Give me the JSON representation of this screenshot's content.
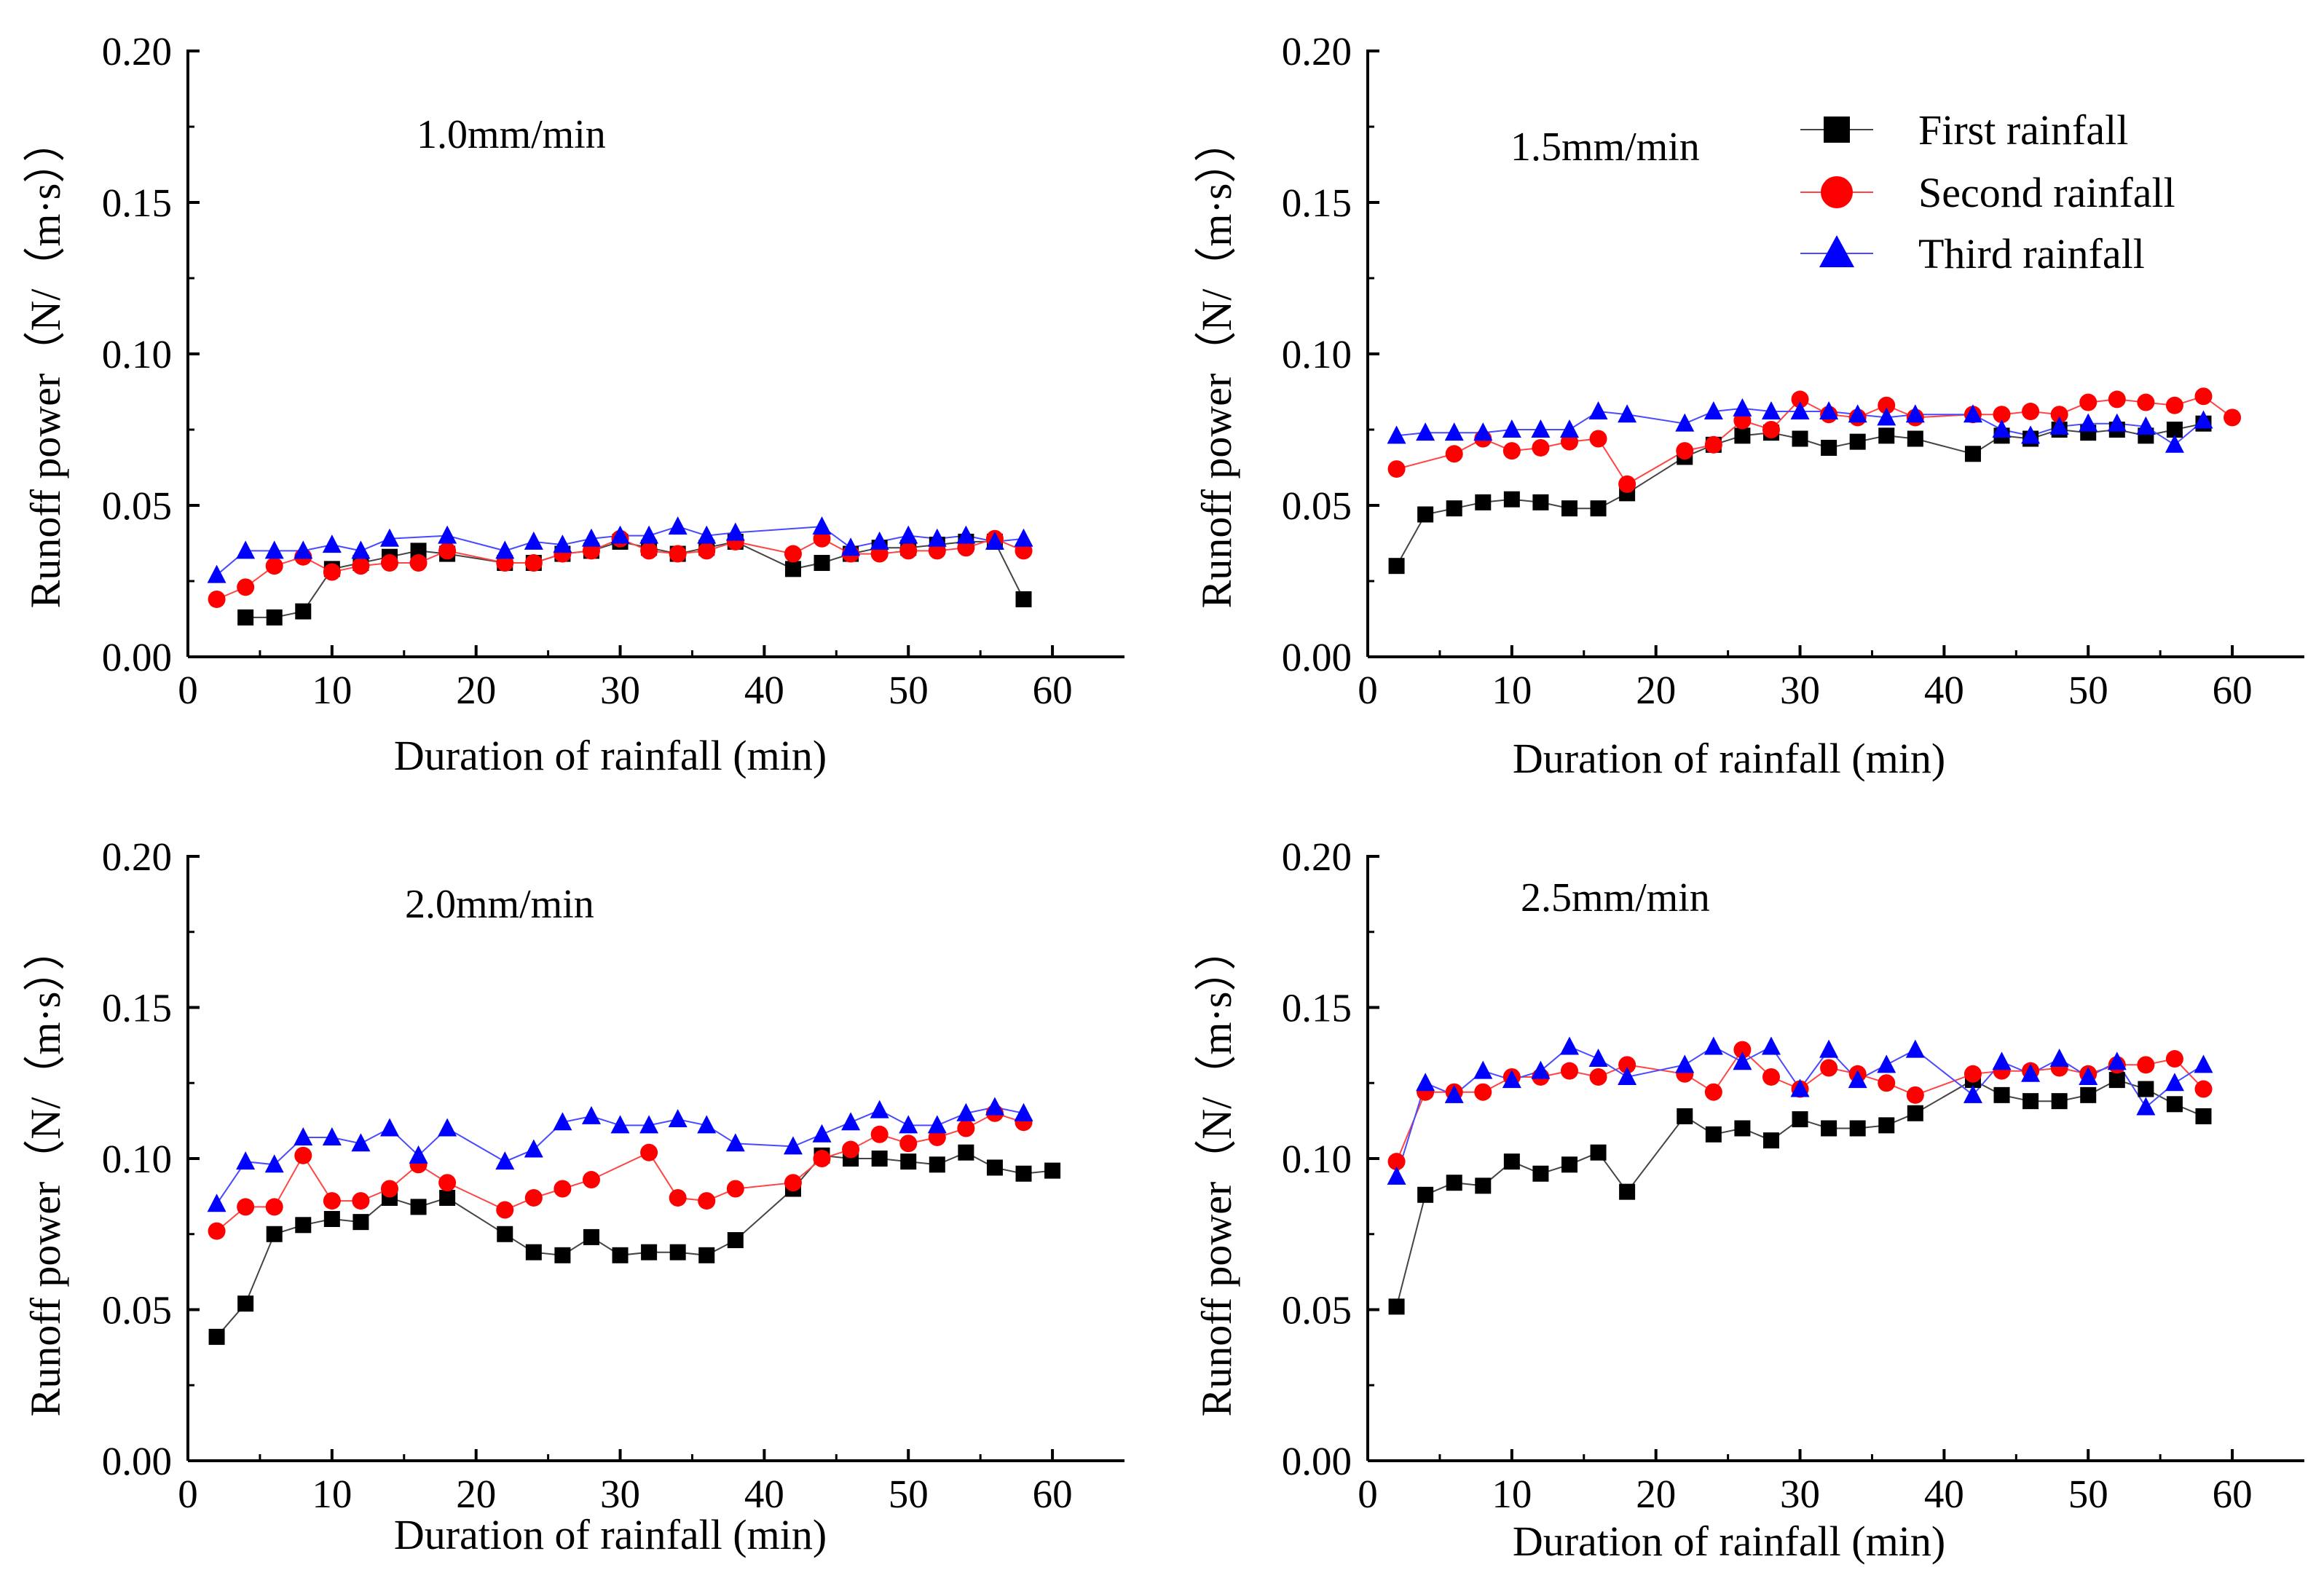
{
  "figure": {
    "legend": {
      "entries": [
        {
          "name": "First rainfall",
          "color": "#000000",
          "marker": "square"
        },
        {
          "name": "Second rainfall",
          "color": "#ff0000",
          "marker": "circle"
        },
        {
          "name": "Third rainfall",
          "color": "#0000ff",
          "marker": "triangle"
        }
      ]
    },
    "series_style": [
      {
        "color": "#000000",
        "line_color": "#444444",
        "marker": "square"
      },
      {
        "color": "#ff0000",
        "line_color": "#ff4444",
        "marker": "circle"
      },
      {
        "color": "#0000ff",
        "line_color": "#4a4aff",
        "marker": "triangle"
      }
    ]
  },
  "chart_data": [
    {
      "type": "line",
      "title": "1.0mm/min",
      "xlabel": "Duration of rainfall  (min)",
      "ylabel": "Runoff power（N/（m·s））",
      "xlim": [
        0,
        65
      ],
      "ylim": [
        0,
        0.2
      ],
      "xticks": [
        0,
        10,
        20,
        30,
        40,
        50,
        60
      ],
      "yticks": [
        0.0,
        0.05,
        0.1,
        0.15,
        0.2
      ],
      "xtick_labels": [
        "0",
        "10",
        "20",
        "30",
        "40",
        "50",
        "60"
      ],
      "ytick_labels": [
        "0.00",
        "0.05",
        "0.10",
        "0.15",
        "0.20"
      ],
      "series": [
        {
          "name": "First rainfall",
          "x": [
            4,
            6,
            8,
            10,
            12,
            14,
            16,
            18,
            22,
            24,
            26,
            28,
            30,
            32,
            34,
            36,
            38,
            42,
            44,
            46,
            48,
            50,
            52,
            54,
            56,
            58
          ],
          "y": [
            0.013,
            0.013,
            0.015,
            0.029,
            0.031,
            0.033,
            0.035,
            0.034,
            0.031,
            0.031,
            0.034,
            0.035,
            0.038,
            0.036,
            0.034,
            0.036,
            0.038,
            0.029,
            0.031,
            0.034,
            0.036,
            0.036,
            0.037,
            0.038,
            0.038,
            0.019
          ]
        },
        {
          "name": "Second rainfall",
          "x": [
            2,
            4,
            6,
            8,
            10,
            12,
            14,
            16,
            18,
            22,
            24,
            26,
            28,
            30,
            32,
            34,
            36,
            38,
            42,
            44,
            46,
            48,
            50,
            52,
            54,
            56,
            58
          ],
          "y": [
            0.019,
            0.023,
            0.03,
            0.033,
            0.028,
            0.03,
            0.031,
            0.031,
            0.035,
            0.031,
            0.031,
            0.034,
            0.035,
            0.039,
            0.035,
            0.034,
            0.035,
            0.038,
            0.034,
            0.039,
            0.034,
            0.034,
            0.035,
            0.035,
            0.036,
            0.039,
            0.035
          ]
        },
        {
          "name": "Third rainfall",
          "x": [
            2,
            4,
            6,
            8,
            10,
            12,
            14,
            18,
            22,
            24,
            26,
            28,
            30,
            32,
            34,
            36,
            38,
            44,
            46,
            48,
            50,
            52,
            54,
            56,
            58
          ],
          "y": [
            0.027,
            0.035,
            0.035,
            0.035,
            0.037,
            0.035,
            0.039,
            0.04,
            0.035,
            0.038,
            0.037,
            0.039,
            0.04,
            0.04,
            0.043,
            0.04,
            0.041,
            0.043,
            0.036,
            0.038,
            0.04,
            0.039,
            0.04,
            0.038,
            0.039
          ]
        }
      ]
    },
    {
      "type": "line",
      "title": "1.5mm/min",
      "xlabel": "Duration of rainfall  (min)",
      "ylabel": "Runoff power（N/（m·s））",
      "xlim": [
        0,
        65
      ],
      "ylim": [
        0,
        0.2
      ],
      "xticks": [
        0,
        10,
        20,
        30,
        40,
        50,
        60
      ],
      "yticks": [
        0.0,
        0.05,
        0.1,
        0.15,
        0.2
      ],
      "xtick_labels": [
        "0",
        "10",
        "20",
        "30",
        "40",
        "50",
        "60"
      ],
      "ytick_labels": [
        "0.00",
        "0.05",
        "0.10",
        "0.15",
        "0.20"
      ],
      "legend_position": "top-right",
      "series": [
        {
          "name": "First rainfall",
          "x": [
            2,
            4,
            6,
            8,
            10,
            12,
            14,
            16,
            18,
            22,
            24,
            26,
            28,
            30,
            32,
            34,
            36,
            38,
            42,
            44,
            46,
            48,
            50,
            52,
            54,
            56,
            58
          ],
          "y": [
            0.03,
            0.047,
            0.049,
            0.051,
            0.052,
            0.051,
            0.049,
            0.049,
            0.054,
            0.066,
            0.07,
            0.073,
            0.074,
            0.072,
            0.069,
            0.071,
            0.073,
            0.072,
            0.067,
            0.073,
            0.072,
            0.075,
            0.074,
            0.075,
            0.073,
            0.075,
            0.077
          ]
        },
        {
          "name": "Second rainfall",
          "x": [
            2,
            6,
            8,
            10,
            12,
            14,
            16,
            18,
            22,
            24,
            26,
            28,
            30,
            32,
            34,
            36,
            38,
            42,
            44,
            46,
            48,
            50,
            52,
            54,
            56,
            58,
            60
          ],
          "y": [
            0.062,
            0.067,
            0.072,
            0.068,
            0.069,
            0.071,
            0.072,
            0.057,
            0.068,
            0.07,
            0.078,
            0.075,
            0.085,
            0.08,
            0.079,
            0.083,
            0.079,
            0.08,
            0.08,
            0.081,
            0.08,
            0.084,
            0.085,
            0.084,
            0.083,
            0.086,
            0.079
          ]
        },
        {
          "name": "Third rainfall",
          "x": [
            2,
            4,
            6,
            8,
            10,
            12,
            14,
            16,
            18,
            22,
            24,
            26,
            28,
            30,
            32,
            34,
            36,
            38,
            42,
            44,
            46,
            48,
            50,
            52,
            54,
            56,
            58
          ],
          "y": [
            0.073,
            0.074,
            0.074,
            0.074,
            0.075,
            0.075,
            0.075,
            0.081,
            0.08,
            0.077,
            0.081,
            0.082,
            0.081,
            0.081,
            0.081,
            0.08,
            0.079,
            0.08,
            0.08,
            0.075,
            0.073,
            0.076,
            0.077,
            0.077,
            0.076,
            0.07,
            0.078
          ]
        }
      ]
    },
    {
      "type": "line",
      "title": "2.0mm/min",
      "xlabel": "Duration of rainfall  (min)",
      "ylabel": "Runoff power（N/（m·s））",
      "xlim": [
        0,
        65
      ],
      "ylim": [
        0,
        0.2
      ],
      "xticks": [
        0,
        10,
        20,
        30,
        40,
        50,
        60
      ],
      "yticks": [
        0.0,
        0.05,
        0.1,
        0.15,
        0.2
      ],
      "xtick_labels": [
        "0",
        "10",
        "20",
        "30",
        "40",
        "50",
        "60"
      ],
      "ytick_labels": [
        "0.00",
        "0.05",
        "0.10",
        "0.15",
        "0.20"
      ],
      "series": [
        {
          "name": "First rainfall",
          "x": [
            2,
            4,
            6,
            8,
            10,
            12,
            14,
            16,
            18,
            22,
            24,
            26,
            28,
            30,
            32,
            34,
            36,
            38,
            42,
            44,
            46,
            48,
            50,
            52,
            54,
            56,
            58,
            60
          ],
          "y": [
            0.041,
            0.052,
            0.075,
            0.078,
            0.08,
            0.079,
            0.087,
            0.084,
            0.087,
            0.075,
            0.069,
            0.068,
            0.074,
            0.068,
            0.069,
            0.069,
            0.068,
            0.073,
            0.09,
            0.101,
            0.1,
            0.1,
            0.099,
            0.098,
            0.102,
            0.097,
            0.095,
            0.096
          ]
        },
        {
          "name": "Second rainfall",
          "x": [
            2,
            4,
            6,
            8,
            10,
            12,
            14,
            16,
            18,
            22,
            24,
            26,
            28,
            32,
            34,
            36,
            38,
            42,
            44,
            46,
            48,
            50,
            52,
            54,
            56,
            58
          ],
          "y": [
            0.076,
            0.084,
            0.084,
            0.101,
            0.086,
            0.086,
            0.09,
            0.098,
            0.092,
            0.083,
            0.087,
            0.09,
            0.093,
            0.102,
            0.087,
            0.086,
            0.09,
            0.092,
            0.1,
            0.103,
            0.108,
            0.105,
            0.107,
            0.11,
            0.115,
            0.112
          ]
        },
        {
          "name": "Third rainfall",
          "x": [
            2,
            4,
            6,
            8,
            10,
            12,
            14,
            16,
            18,
            22,
            24,
            26,
            28,
            30,
            32,
            34,
            36,
            38,
            42,
            44,
            46,
            48,
            50,
            52,
            54,
            56,
            58
          ],
          "y": [
            0.085,
            0.099,
            0.098,
            0.107,
            0.107,
            0.105,
            0.11,
            0.101,
            0.11,
            0.099,
            0.103,
            0.112,
            0.114,
            0.111,
            0.111,
            0.113,
            0.111,
            0.105,
            0.104,
            0.108,
            0.112,
            0.116,
            0.111,
            0.111,
            0.115,
            0.117,
            0.115
          ]
        }
      ]
    },
    {
      "type": "line",
      "title": "2.5mm/min",
      "xlabel": "Duration of rainfall  (min)",
      "ylabel": "Runoff power（N/（m·s））",
      "xlim": [
        0,
        65
      ],
      "ylim": [
        0,
        0.2
      ],
      "xticks": [
        0,
        10,
        20,
        30,
        40,
        50,
        60
      ],
      "yticks": [
        0.0,
        0.05,
        0.1,
        0.15,
        0.2
      ],
      "xtick_labels": [
        "0",
        "10",
        "20",
        "30",
        "40",
        "50",
        "60"
      ],
      "ytick_labels": [
        "0.00",
        "0.05",
        "0.10",
        "0.15",
        "0.20"
      ],
      "series": [
        {
          "name": "First rainfall",
          "x": [
            2,
            4,
            6,
            8,
            10,
            12,
            14,
            16,
            18,
            22,
            24,
            26,
            28,
            30,
            32,
            34,
            36,
            38,
            42,
            44,
            46,
            48,
            50,
            52,
            54,
            56,
            58
          ],
          "y": [
            0.051,
            0.088,
            0.092,
            0.091,
            0.099,
            0.095,
            0.098,
            0.102,
            0.089,
            0.114,
            0.108,
            0.11,
            0.106,
            0.113,
            0.11,
            0.11,
            0.111,
            0.115,
            0.126,
            0.121,
            0.119,
            0.119,
            0.121,
            0.126,
            0.123,
            0.118,
            0.114
          ]
        },
        {
          "name": "Second rainfall",
          "x": [
            2,
            4,
            6,
            8,
            10,
            12,
            14,
            16,
            18,
            22,
            24,
            26,
            28,
            30,
            32,
            34,
            36,
            38,
            42,
            44,
            46,
            48,
            50,
            52,
            54,
            56,
            58
          ],
          "y": [
            0.099,
            0.122,
            0.122,
            0.122,
            0.127,
            0.127,
            0.129,
            0.127,
            0.131,
            0.128,
            0.122,
            0.136,
            0.127,
            0.123,
            0.13,
            0.128,
            0.125,
            0.121,
            0.128,
            0.129,
            0.129,
            0.13,
            0.128,
            0.131,
            0.131,
            0.133,
            0.123
          ]
        },
        {
          "name": "Third rainfall",
          "x": [
            2,
            4,
            6,
            8,
            10,
            12,
            14,
            16,
            18,
            22,
            24,
            26,
            28,
            30,
            32,
            34,
            36,
            38,
            42,
            44,
            46,
            48,
            50,
            52,
            54,
            56,
            58
          ],
          "y": [
            0.094,
            0.125,
            0.121,
            0.129,
            0.126,
            0.129,
            0.137,
            0.133,
            0.127,
            0.131,
            0.137,
            0.132,
            0.137,
            0.123,
            0.136,
            0.126,
            0.131,
            0.136,
            0.121,
            0.132,
            0.128,
            0.133,
            0.127,
            0.132,
            0.117,
            0.125,
            0.131
          ]
        }
      ]
    }
  ]
}
